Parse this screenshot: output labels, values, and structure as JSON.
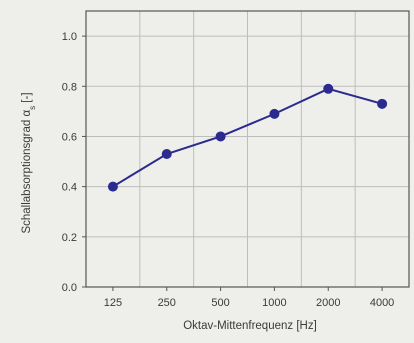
{
  "chart_data": {
    "type": "line",
    "title": "",
    "xlabel": "Oktav-Mittenfrequenz [Hz]",
    "ylabel": "Schallabsorptionsgrad α_s [-]",
    "ylabel_main": "Schallabsorptionsgrad α",
    "ylabel_sub": "s",
    "ylabel_unit": " [-]",
    "categories": [
      "125",
      "250",
      "500",
      "1000",
      "2000",
      "4000"
    ],
    "series": [
      {
        "values": [
          0.4,
          0.53,
          0.6,
          0.69,
          0.79,
          0.73
        ]
      }
    ],
    "ylim": [
      0.0,
      1.1
    ],
    "yticks": [
      "0.0",
      "0.2",
      "0.4",
      "0.6",
      "0.8",
      "1.0"
    ],
    "grid": true,
    "line_color": "#2b2a8f",
    "marker_color": "#2b2a8f",
    "grid_color": "#bdbdbd",
    "axis_color": "#555555"
  }
}
